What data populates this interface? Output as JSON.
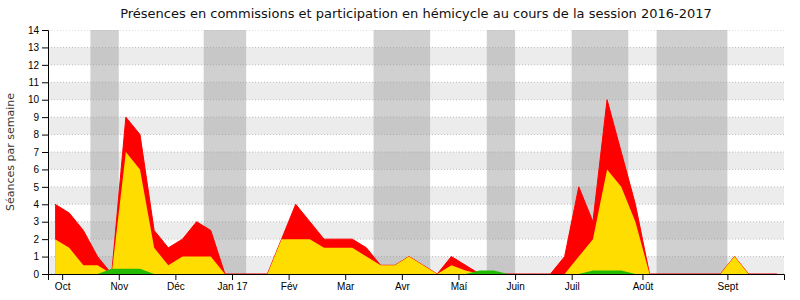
{
  "chart_data": {
    "type": "area",
    "title": "Présences en commissions et participation en hémicycle au cours de la session 2016-2017",
    "y_label": "Séances par semaine",
    "x": [
      0,
      1,
      2,
      3,
      4,
      5,
      6,
      7,
      8,
      9,
      10,
      11,
      12,
      13,
      14,
      15,
      16,
      17,
      18,
      19,
      20,
      21,
      22,
      23,
      24,
      25,
      26,
      27,
      28,
      29,
      30,
      31,
      32,
      33,
      34,
      35,
      36,
      37,
      38,
      39,
      40,
      41,
      42,
      43,
      44,
      45,
      46,
      47,
      48,
      49,
      50,
      51
    ],
    "xlim": [
      -0.5,
      51.5
    ],
    "xticks": [
      {
        "value": 0.5,
        "label": "Oct"
      },
      {
        "value": 4.5,
        "label": "Nov"
      },
      {
        "value": 8.5,
        "label": "Déc"
      },
      {
        "value": 12.5,
        "label": "Jan 17"
      },
      {
        "value": 16.5,
        "label": "Fév"
      },
      {
        "value": 20.5,
        "label": "Mar"
      },
      {
        "value": 24.5,
        "label": "Avr"
      },
      {
        "value": 28.5,
        "label": "Maí"
      },
      {
        "value": 32.5,
        "label": "Juin"
      },
      {
        "value": 36.5,
        "label": "Juil"
      },
      {
        "value": 41.5,
        "label": "Août"
      },
      {
        "value": 47.5,
        "label": "Sept"
      }
    ],
    "ylim": [
      0,
      14
    ],
    "yticks": [
      0,
      1,
      2,
      3,
      4,
      5,
      6,
      7,
      8,
      9,
      10,
      11,
      12,
      13,
      14
    ],
    "grid": true,
    "series": [
      {
        "color": "#ff0000",
        "values": [
          4.0,
          3.5,
          2.5,
          1.0,
          0.0,
          9.0,
          8.0,
          2.5,
          1.5,
          2.0,
          3.0,
          2.5,
          0.0,
          0.0,
          0.0,
          0.0,
          2.0,
          4.0,
          3.0,
          2.0,
          2.0,
          2.0,
          1.5,
          0.5,
          0.5,
          1.0,
          0.5,
          0.0,
          1.0,
          0.5,
          0.0,
          0.0,
          0.0,
          0.0,
          0.0,
          0.0,
          1.0,
          5.0,
          3.0,
          10.0,
          7.0,
          4.0,
          0.0,
          0.0,
          0.0,
          0.0,
          0.0,
          0.0,
          1.0,
          0.0,
          0.0,
          0.0
        ]
      },
      {
        "color": "#ffdd00",
        "values": [
          2.0,
          1.5,
          0.5,
          0.5,
          0.0,
          7.0,
          6.0,
          1.5,
          0.5,
          1.0,
          1.0,
          1.0,
          0.0,
          0.0,
          0.0,
          0.0,
          2.0,
          2.0,
          2.0,
          1.5,
          1.5,
          1.5,
          1.0,
          0.5,
          0.5,
          1.0,
          0.5,
          0.0,
          0.5,
          0.2,
          0.0,
          0.0,
          0.0,
          0.0,
          0.0,
          0.0,
          0.0,
          1.0,
          2.0,
          6.0,
          5.0,
          3.0,
          0.0,
          0.0,
          0.0,
          0.0,
          0.0,
          0.0,
          1.0,
          0.0,
          0.0,
          0.0
        ]
      },
      {
        "color": "#22bb00",
        "values": [
          0.0,
          0.0,
          0.0,
          0.0,
          0.3,
          0.3,
          0.3,
          0.0,
          0.0,
          0.0,
          0.0,
          0.0,
          0.0,
          0.0,
          0.0,
          0.0,
          0.0,
          0.0,
          0.0,
          0.0,
          0.0,
          0.0,
          0.0,
          0.0,
          0.0,
          0.0,
          0.0,
          0.0,
          0.0,
          0.0,
          0.2,
          0.2,
          0.0,
          0.0,
          0.0,
          0.0,
          0.0,
          0.0,
          0.2,
          0.2,
          0.2,
          0.0,
          0.0,
          0.0,
          0.0,
          0.0,
          0.0,
          0.0,
          0.0,
          0.0,
          0.0,
          0.0
        ]
      }
    ],
    "shaded_x": [
      [
        3,
        4
      ],
      [
        11,
        13
      ],
      [
        23,
        26
      ],
      [
        31,
        32
      ],
      [
        37,
        40
      ],
      [
        43,
        47
      ]
    ]
  }
}
